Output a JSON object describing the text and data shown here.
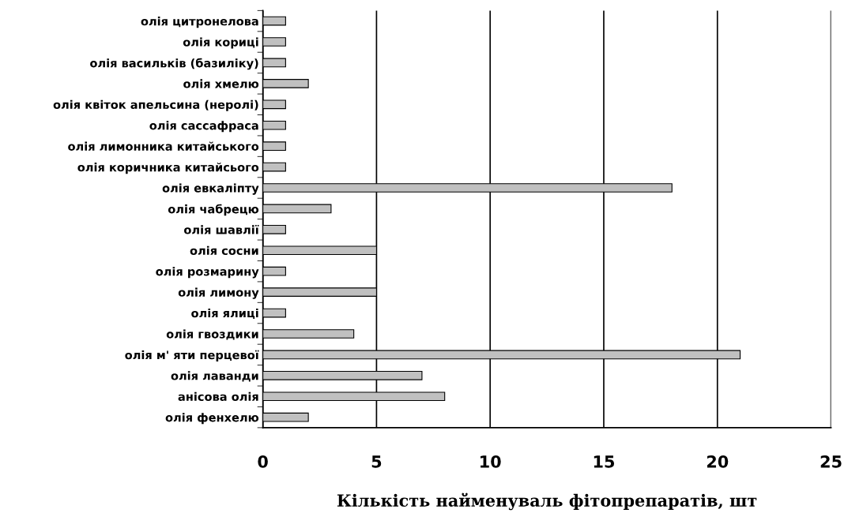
{
  "chart_data": {
    "type": "bar",
    "orientation": "horizontal",
    "xlabel": "Кількість найменуваль фітопрепаратів, шт",
    "categories": [
      "олія цитронелова",
      "олія кориці",
      "олія васильків (базиліку)",
      "олія хмелю",
      "олія квіток апельсина (неролі)",
      "олія сассафраса",
      "олія лимонника китайського",
      "олія коричника китайсього",
      "олія евкаліпту",
      "олія чабрецю",
      "олія шавлії",
      "олія сосни",
      "олія розмарину",
      "олія лимону",
      "олія ялиці",
      "олія гвоздики",
      "олія м' яти перцевої",
      "олія лаванди",
      "анісова олія",
      "олія фенхелю"
    ],
    "values": [
      1,
      1,
      1,
      2,
      1,
      1,
      1,
      1,
      18,
      3,
      1,
      5,
      1,
      5,
      1,
      4,
      21,
      7,
      8,
      2
    ],
    "color": "#c0c0c0",
    "xlim": [
      0,
      25
    ],
    "xticks": [
      0,
      5,
      10,
      15,
      20,
      25
    ],
    "grid": "x"
  }
}
